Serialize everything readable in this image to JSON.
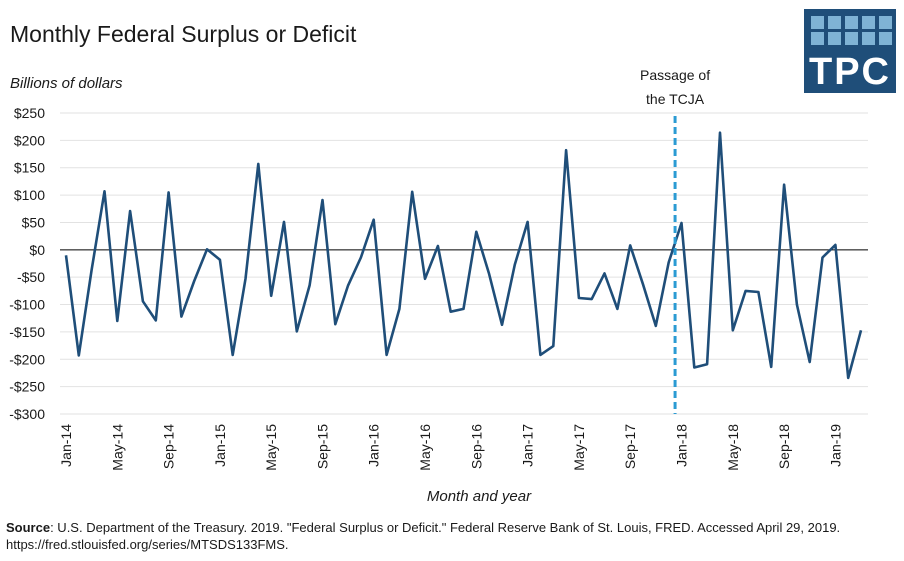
{
  "chart_data": {
    "type": "line",
    "title": "Monthly Federal Surplus or Deficit",
    "ylabel": "Billions of dollars",
    "xlabel": "Month and year",
    "ylim": [
      -300,
      250
    ],
    "yticks": [
      250,
      200,
      150,
      100,
      50,
      0,
      -50,
      -100,
      -150,
      -200,
      -250,
      -300
    ],
    "ytick_labels": [
      "$250",
      "$200",
      "$150",
      "$100",
      "$50",
      "$0",
      "-$50",
      "-$100",
      "-$150",
      "-$200",
      "-$250",
      "-$300"
    ],
    "x": [
      "Jan-14",
      "Feb-14",
      "Mar-14",
      "Apr-14",
      "May-14",
      "Jun-14",
      "Jul-14",
      "Aug-14",
      "Sep-14",
      "Oct-14",
      "Nov-14",
      "Dec-14",
      "Jan-15",
      "Feb-15",
      "Mar-15",
      "Apr-15",
      "May-15",
      "Jun-15",
      "Jul-15",
      "Aug-15",
      "Sep-15",
      "Oct-15",
      "Nov-15",
      "Dec-15",
      "Jan-16",
      "Feb-16",
      "Mar-16",
      "Apr-16",
      "May-16",
      "Jun-16",
      "Jul-16",
      "Aug-16",
      "Sep-16",
      "Oct-16",
      "Nov-16",
      "Dec-16",
      "Jan-17",
      "Feb-17",
      "Mar-17",
      "Apr-17",
      "May-17",
      "Jun-17",
      "Jul-17",
      "Aug-17",
      "Sep-17",
      "Oct-17",
      "Nov-17",
      "Dec-17",
      "Jan-18",
      "Feb-18",
      "Mar-18",
      "Apr-18",
      "May-18",
      "Jun-18",
      "Jul-18",
      "Aug-18",
      "Sep-18",
      "Oct-18",
      "Nov-18",
      "Dec-18",
      "Jan-19",
      "Feb-19",
      "Mar-19"
    ],
    "xtick_labels": [
      "Jan-14",
      "May-14",
      "Sep-14",
      "Jan-15",
      "May-15",
      "Sep-15",
      "Jan-16",
      "May-16",
      "Sep-16",
      "Jan-17",
      "May-17",
      "Sep-17",
      "Jan-18",
      "May-18",
      "Sep-18",
      "Jan-19"
    ],
    "series": [
      {
        "color": "#1f4e79",
        "values": [
          -10,
          -193,
          -37,
          107,
          -130,
          71,
          -94,
          -129,
          105,
          -122,
          -57,
          1,
          -18,
          -192,
          -53,
          157,
          -84,
          51,
          -149,
          -65,
          91,
          -136,
          -65,
          -14,
          55,
          -192,
          -108,
          106,
          -53,
          7,
          -113,
          -108,
          33,
          -44,
          -137,
          -27,
          51,
          -192,
          -176,
          182,
          -88,
          -90,
          -43,
          -108,
          8,
          -63,
          -139,
          -23,
          49,
          -215,
          -209,
          214,
          -147,
          -75,
          -77,
          -214,
          119,
          -100,
          -205,
          -14,
          9,
          -234,
          -147
        ]
      }
    ],
    "annotation": {
      "line1": "Passage of",
      "line2": "the TCJA",
      "x": "Dec-17",
      "color": "#2b9bd3"
    },
    "grid": true,
    "legend": "none"
  },
  "logo": {
    "text": "TPC",
    "color": "#1f4e79",
    "square_color": "#7fb3d5"
  },
  "source": {
    "label": "Source",
    "text": ": U.S. Department of the Treasury. 2019. \"Federal Surplus or Deficit.\" Federal Reserve Bank of St. Louis, FRED. Accessed April 29, 2019. https://fred.stlouisfed.org/series/MTSDS133FMS."
  }
}
